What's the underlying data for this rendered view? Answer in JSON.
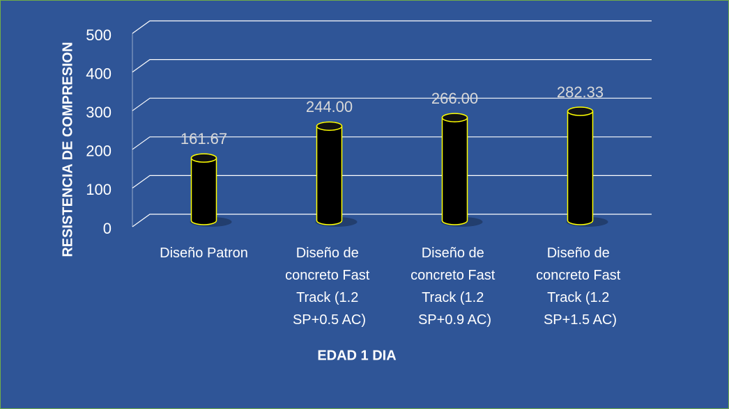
{
  "chart_data": {
    "type": "bar",
    "categories": [
      "Diseño Patron",
      "Diseño de concreto Fast Track (1.2 SP+0.5 AC)",
      "Diseño de concreto Fast Track (1.2 SP+0.9 AC)",
      "Diseño de concreto Fast Track (1.2 SP+1.5 AC)"
    ],
    "values": [
      161.67,
      244,
      266,
      282.33
    ],
    "value_labels": [
      "161.67",
      "244.00",
      "266.00",
      "282.33"
    ],
    "color": "#000000",
    "edge_color": "#ffff00",
    "x_label": "EDAD 1 DIA",
    "y_label": "RESISTENCIA DE COMPRESION",
    "ylim": [
      0,
      500
    ],
    "yticks": [
      0,
      100,
      200,
      300,
      400,
      500
    ],
    "grid": true
  }
}
